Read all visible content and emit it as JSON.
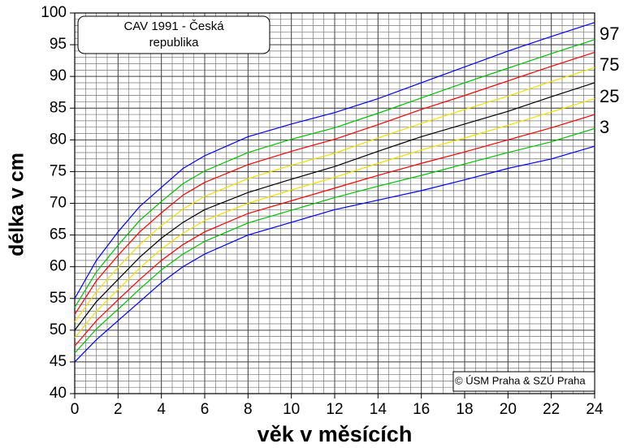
{
  "chart_data": {
    "type": "line",
    "title_lines": [
      "CAV 1991 - Česká",
      "republika"
    ],
    "xlabel": "věk v měsících",
    "ylabel": "délka v cm",
    "annotations": [
      "97",
      "75",
      "25",
      "3"
    ],
    "credit": "© ÚSM Praha & SZÚ Praha",
    "x": [
      0,
      1,
      2,
      3,
      4,
      5,
      6,
      8,
      10,
      12,
      14,
      16,
      18,
      20,
      22,
      24
    ],
    "series": [
      {
        "color": "#0000ff",
        "values": [
          55,
          61,
          65.5,
          69.5,
          72.5,
          75.5,
          77.5,
          80.5,
          82.5,
          84.3,
          86.5,
          89,
          91.5,
          94,
          96.3,
          98.5
        ]
      },
      {
        "color": "#00c000",
        "values": [
          53.6,
          59.2,
          63.4,
          67.3,
          70.3,
          73.1,
          75.1,
          78.0,
          80.1,
          81.9,
          84.2,
          86.6,
          89,
          91.3,
          93.6,
          95.8
        ]
      },
      {
        "color": "#ff0000",
        "values": [
          52.5,
          57.8,
          61.8,
          65.5,
          68.5,
          71.3,
          73.3,
          76.1,
          78.2,
          80.1,
          82.4,
          84.8,
          87,
          89.3,
          91.6,
          93.8
        ]
      },
      {
        "color": "#f0e000",
        "values": [
          51.3,
          56.1,
          59.9,
          63.5,
          66.5,
          69.1,
          71.1,
          73.9,
          76,
          77.9,
          80.3,
          82.6,
          84.8,
          86.9,
          89.2,
          91.4
        ]
      },
      {
        "color": "#000000",
        "values": [
          50,
          54.5,
          58,
          61.5,
          64.5,
          67,
          69,
          71.7,
          73.8,
          75.8,
          78.2,
          80.5,
          82.5,
          84.5,
          86.8,
          89
        ]
      },
      {
        "color": "#f0e000",
        "values": [
          48.8,
          53,
          56.4,
          59.8,
          62.8,
          65.3,
          67.3,
          70,
          72.1,
          74.1,
          76.3,
          78.4,
          80.3,
          82.3,
          84.4,
          86.5
        ]
      },
      {
        "color": "#ff0000",
        "values": [
          47.5,
          51.5,
          54.8,
          58,
          61,
          63.5,
          65.5,
          68.4,
          70.4,
          72.4,
          74.4,
          76.3,
          78.1,
          80,
          81.9,
          84
        ]
      },
      {
        "color": "#00c000",
        "values": [
          46.4,
          50.2,
          53.3,
          56.5,
          59.5,
          62,
          64,
          66.9,
          68.9,
          70.9,
          72.7,
          74.4,
          76.2,
          78,
          79.7,
          81.8
        ]
      },
      {
        "color": "#0000ff",
        "values": [
          45,
          48.5,
          51.5,
          54.5,
          57.5,
          60,
          62,
          65,
          67,
          69,
          70.5,
          72,
          73.7,
          75.5,
          77,
          79
        ]
      }
    ],
    "xlim": [
      0,
      24
    ],
    "xticks": [
      0,
      2,
      4,
      6,
      8,
      10,
      12,
      14,
      16,
      18,
      20,
      22,
      24
    ],
    "ylim": [
      40,
      100
    ],
    "yticks": [
      40,
      45,
      50,
      55,
      60,
      65,
      70,
      75,
      80,
      85,
      90,
      95,
      100
    ],
    "grid": true,
    "minor_grid": {
      "x": 0.5,
      "y": 1
    }
  }
}
